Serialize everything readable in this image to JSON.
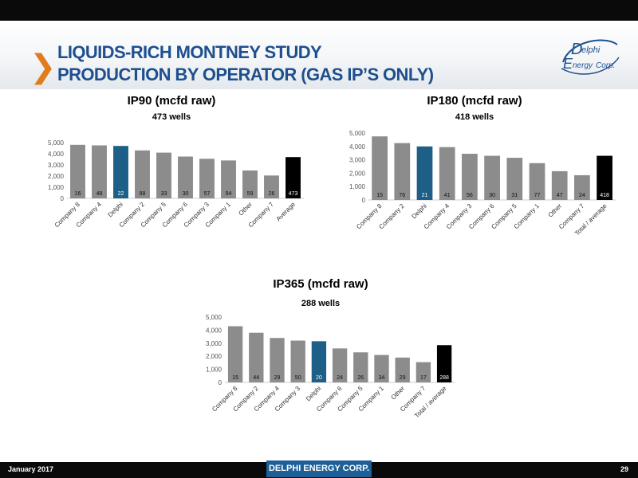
{
  "header": {
    "title_line1": "LIQUIDS-RICH MONTNEY STUDY",
    "title_line2": "PRODUCTION BY OPERATOR (GAS IP’S ONLY)",
    "logo_line1": "elphi",
    "logo_line2": "nergy",
    "logo_line3": "Corp."
  },
  "footer": {
    "date": "January 2017",
    "brand": "DELPHI ENERGY CORP.",
    "page": "29"
  },
  "colors": {
    "bar_default": "#8c8c8c",
    "bar_highlight": "#1d5f86",
    "bar_total": "#000000",
    "accent_orange": "#e07c1c",
    "title_blue": "#1e4f8f"
  },
  "chart_data": [
    {
      "type": "bar",
      "title": "IP90 (mcfd raw)",
      "subtitle": "473 wells",
      "categories": [
        "Company 8",
        "Company 4",
        "Delphi",
        "Company 2",
        "Company 5",
        "Company 6",
        "Company 3",
        "Company 1",
        "Other",
        "Company 7",
        "Average"
      ],
      "values": [
        4800,
        4750,
        4700,
        4300,
        4100,
        3750,
        3550,
        3400,
        2500,
        2050,
        3700
      ],
      "well_counts": [
        "16",
        "48",
        "22",
        "88",
        "33",
        "30",
        "57",
        "94",
        "59",
        "26",
        "473"
      ],
      "highlight": [
        "default",
        "default",
        "highlight",
        "default",
        "default",
        "default",
        "default",
        "default",
        "default",
        "default",
        "total"
      ],
      "ylim": [
        0,
        5000
      ],
      "yticks": [
        "0",
        "1,000",
        "2,000",
        "3,000",
        "4,000",
        "5,000"
      ]
    },
    {
      "type": "bar",
      "title": "IP180 (mcfd raw)",
      "subtitle": "418 wells",
      "categories": [
        "Company 8",
        "Company 2",
        "Delphi",
        "Company 4",
        "Company 3",
        "Company 6",
        "Company 5",
        "Company 1",
        "Other",
        "Company 7",
        "Total / average"
      ],
      "values": [
        4750,
        4250,
        4000,
        3950,
        3450,
        3300,
        3150,
        2750,
        2150,
        1850,
        3300
      ],
      "well_counts": [
        "15",
        "76",
        "21",
        "41",
        "56",
        "30",
        "31",
        "77",
        "47",
        "24",
        "418"
      ],
      "highlight": [
        "default",
        "default",
        "highlight",
        "default",
        "default",
        "default",
        "default",
        "default",
        "default",
        "default",
        "total"
      ],
      "ylim": [
        0,
        5000
      ],
      "yticks": [
        "0",
        "1,000",
        "2,000",
        "3,000",
        "4,000",
        "5,000"
      ]
    },
    {
      "type": "bar",
      "title": "IP365 (mcfd raw)",
      "subtitle": "288 wells",
      "categories": [
        "Company 8",
        "Company 2",
        "Company 4",
        "Company 3",
        "Delphi",
        "Company 6",
        "Company 5",
        "Company 1",
        "Other",
        "Company 7",
        "Total / average"
      ],
      "values": [
        4300,
        3800,
        3400,
        3200,
        3150,
        2600,
        2300,
        2100,
        1900,
        1550,
        2850
      ],
      "well_counts": [
        "15",
        "44",
        "29",
        "50",
        "20",
        "24",
        "26",
        "34",
        "29",
        "17",
        "288"
      ],
      "highlight": [
        "default",
        "default",
        "default",
        "default",
        "highlight",
        "default",
        "default",
        "default",
        "default",
        "default",
        "total"
      ],
      "ylim": [
        0,
        5000
      ],
      "yticks": [
        "0",
        "1,000",
        "2,000",
        "3,000",
        "4,000",
        "5,000"
      ]
    }
  ]
}
